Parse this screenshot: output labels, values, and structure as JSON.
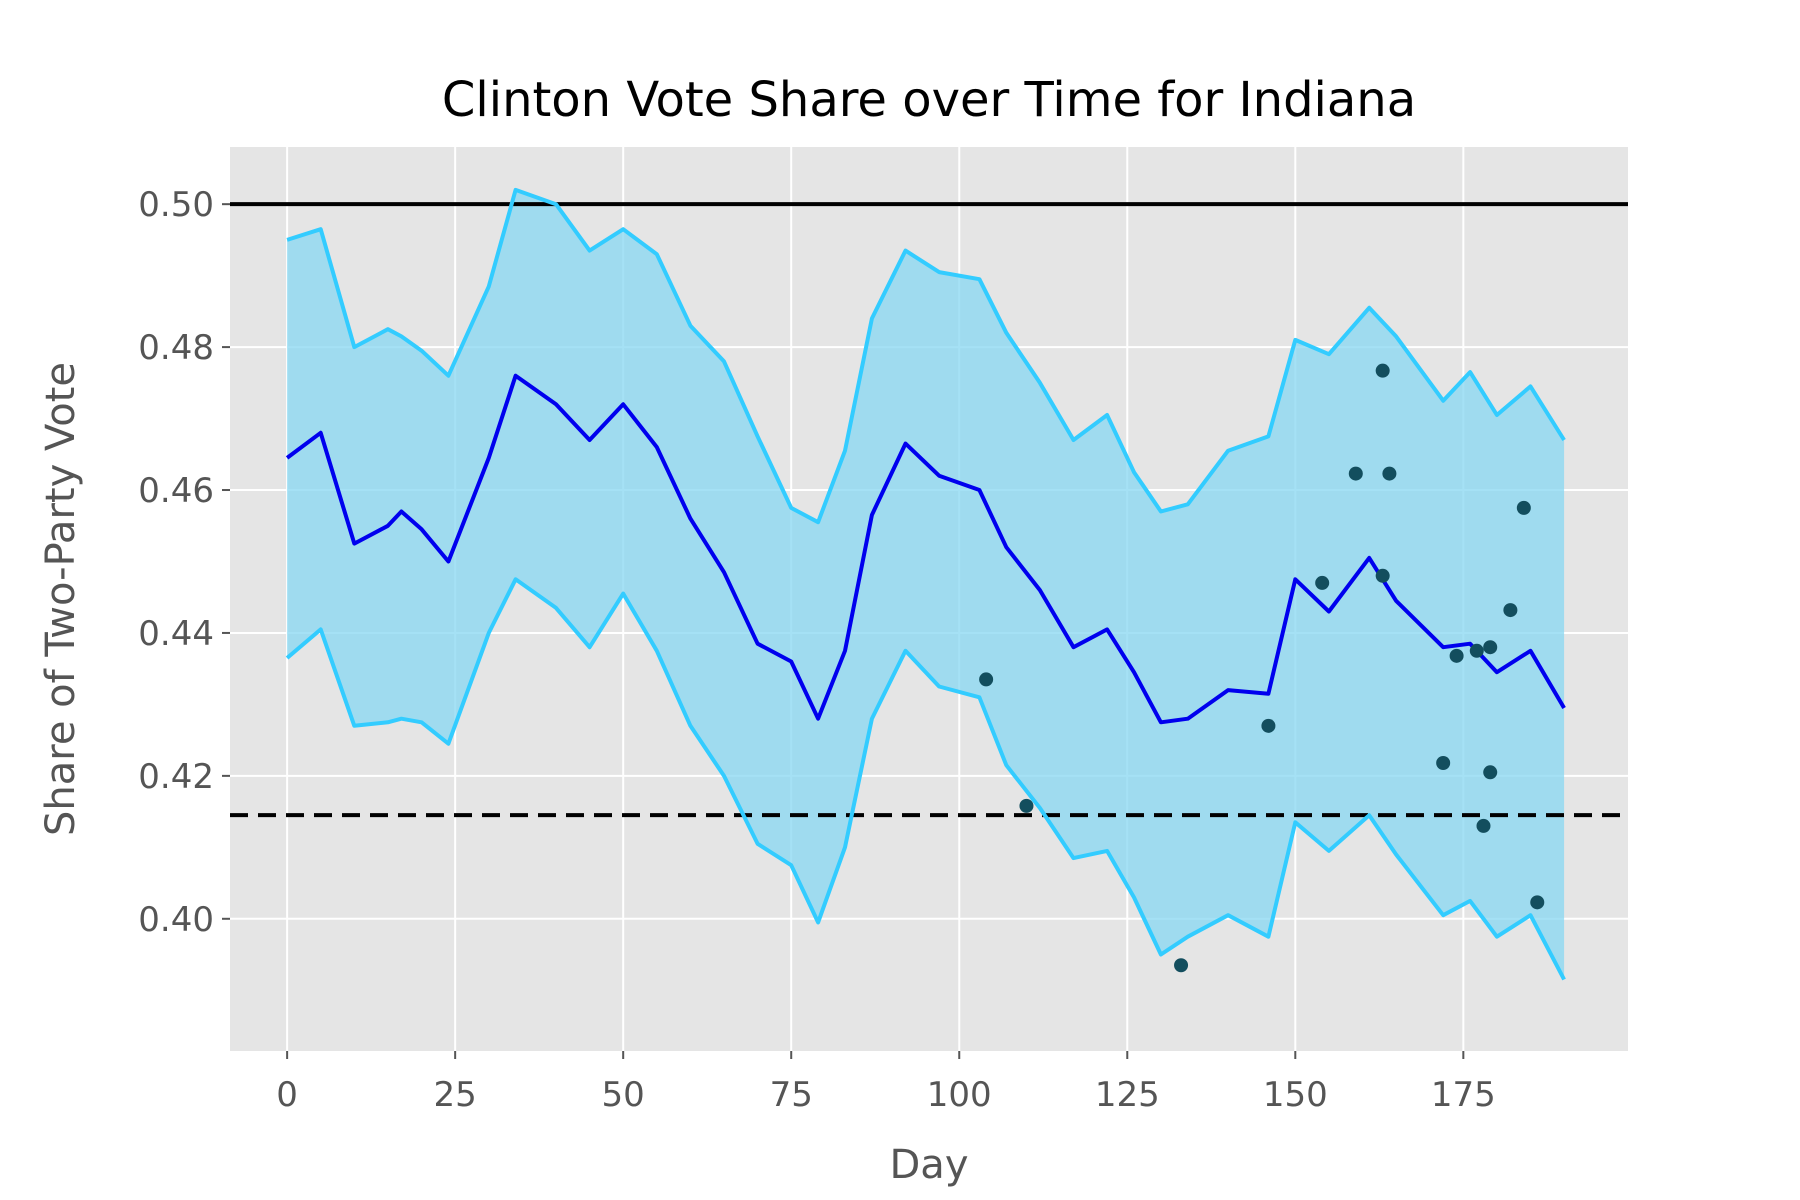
{
  "chart_data": {
    "type": "line",
    "title": "Clinton Vote Share over Time for Indiana",
    "xlabel": "Day",
    "ylabel": "Share of Two-Party Vote",
    "xlim": [
      -8.5,
      199.5
    ],
    "ylim": [
      0.3815,
      0.508
    ],
    "xticks": [
      0,
      25,
      50,
      75,
      100,
      125,
      150,
      175
    ],
    "xtick_labels": [
      "0",
      "25",
      "50",
      "75",
      "100",
      "125",
      "150",
      "175"
    ],
    "yticks": [
      0.4,
      0.42,
      0.44,
      0.46,
      0.48,
      0.5
    ],
    "ytick_labels": [
      "0.40",
      "0.42",
      "0.44",
      "0.46",
      "0.48",
      "0.50"
    ],
    "grid": true,
    "background": "#e5e5e5",
    "colors": {
      "mean_line": "#0000ee",
      "band_line": "#33ccff",
      "band_fill": "#87d7f2",
      "poll_point": "#134e5e",
      "reference_line": "#000000"
    },
    "reference_lines": [
      {
        "y": 0.5,
        "style": "solid"
      },
      {
        "y": 0.4145,
        "style": "dashed"
      }
    ],
    "x": [
      0,
      5,
      10,
      15,
      17,
      20,
      24,
      30,
      34,
      40,
      45,
      50,
      55,
      60,
      65,
      70,
      75,
      79,
      83,
      87,
      92,
      97,
      103,
      107,
      112,
      117,
      122,
      126,
      130,
      134,
      140,
      146,
      150,
      155,
      161,
      165,
      172,
      176,
      180,
      185,
      190
    ],
    "series": [
      {
        "values": [
          0.4645,
          0.468,
          0.4525,
          0.455,
          0.457,
          0.4545,
          0.45,
          0.4645,
          0.476,
          0.472,
          0.467,
          0.472,
          0.466,
          0.456,
          0.4485,
          0.4385,
          0.436,
          0.428,
          0.4375,
          0.4565,
          0.4665,
          0.462,
          0.46,
          0.452,
          0.446,
          0.438,
          0.4405,
          0.4345,
          0.4275,
          0.428,
          0.432,
          0.4315,
          0.4475,
          0.443,
          0.4505,
          0.4445,
          0.438,
          0.4385,
          0.4345,
          0.4375,
          0.4295
        ]
      },
      {
        "values": [
          0.495,
          0.4965,
          0.48,
          0.4825,
          0.4815,
          0.4795,
          0.476,
          0.4885,
          0.502,
          0.5,
          0.4935,
          0.4965,
          0.493,
          0.483,
          0.478,
          0.4675,
          0.4575,
          0.4555,
          0.4655,
          0.484,
          0.4935,
          0.4905,
          0.4895,
          0.482,
          0.475,
          0.467,
          0.4705,
          0.4625,
          0.457,
          0.458,
          0.4655,
          0.4675,
          0.481,
          0.479,
          0.4855,
          0.4815,
          0.4725,
          0.4765,
          0.4705,
          0.4745,
          0.467
        ]
      },
      {
        "values": [
          0.4365,
          0.4405,
          0.427,
          0.4275,
          0.428,
          0.4275,
          0.4245,
          0.44,
          0.4475,
          0.4435,
          0.438,
          0.4455,
          0.4375,
          0.427,
          0.42,
          0.4105,
          0.4075,
          0.3995,
          0.41,
          0.428,
          0.4375,
          0.4325,
          0.431,
          0.4215,
          0.4155,
          0.4085,
          0.4095,
          0.403,
          0.395,
          0.3975,
          0.4005,
          0.3975,
          0.4135,
          0.4095,
          0.4145,
          0.409,
          0.4005,
          0.4025,
          0.3975,
          0.4005,
          0.3915
        ]
      }
    ],
    "points": [
      {
        "x": 104,
        "y": 0.4335
      },
      {
        "x": 110,
        "y": 0.4158
      },
      {
        "x": 133,
        "y": 0.3935
      },
      {
        "x": 146,
        "y": 0.427
      },
      {
        "x": 154,
        "y": 0.447
      },
      {
        "x": 159,
        "y": 0.4623
      },
      {
        "x": 163,
        "y": 0.4767
      },
      {
        "x": 163,
        "y": 0.448
      },
      {
        "x": 164,
        "y": 0.4623
      },
      {
        "x": 172,
        "y": 0.4218
      },
      {
        "x": 174,
        "y": 0.4368
      },
      {
        "x": 177,
        "y": 0.4375
      },
      {
        "x": 178,
        "y": 0.413
      },
      {
        "x": 179,
        "y": 0.438
      },
      {
        "x": 179,
        "y": 0.4205
      },
      {
        "x": 182,
        "y": 0.4432
      },
      {
        "x": 184,
        "y": 0.4575
      },
      {
        "x": 186,
        "y": 0.4023
      }
    ]
  }
}
